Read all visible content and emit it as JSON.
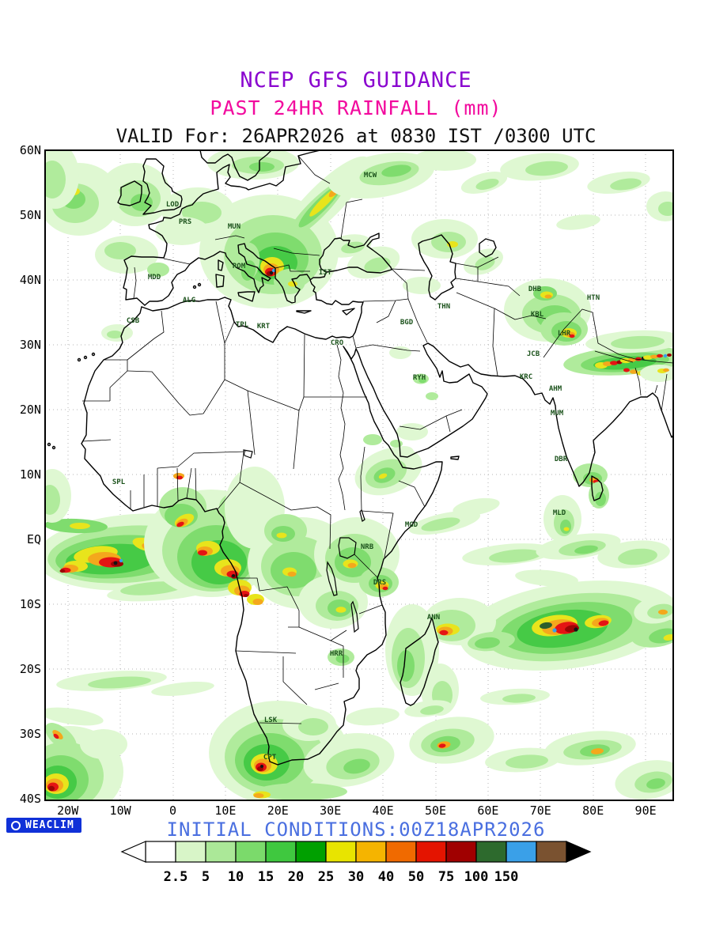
{
  "header": {
    "title": "NCEP GFS GUIDANCE",
    "subtitle": "PAST 24HR RAINFALL (mm)",
    "valid_line": "VALID For: 26APR2026 at 0830 IST /0300 UTC",
    "title_color": "#8a06cf",
    "subtitle_color": "#f20a9e"
  },
  "footer": {
    "initial_conditions": "INITIAL CONDITIONS:00Z18APR2026",
    "color": "#4a6fe0"
  },
  "branding": {
    "watermark": "WEACLIM",
    "bg": "#1031d8"
  },
  "chart_data": {
    "type": "heatmap",
    "projection": "latlon",
    "lon_range": [
      -24,
      95.5
    ],
    "lat_range": [
      -40,
      60
    ],
    "grid": {
      "lon_step": 10,
      "lat_step": 10,
      "style": "dotted"
    },
    "x_ticks": [
      {
        "label": "20W",
        "lon": -20
      },
      {
        "label": "10W",
        "lon": -10
      },
      {
        "label": "0",
        "lon": 0
      },
      {
        "label": "10E",
        "lon": 10
      },
      {
        "label": "20E",
        "lon": 20
      },
      {
        "label": "30E",
        "lon": 30
      },
      {
        "label": "40E",
        "lon": 40
      },
      {
        "label": "50E",
        "lon": 50
      },
      {
        "label": "60E",
        "lon": 60
      },
      {
        "label": "70E",
        "lon": 70
      },
      {
        "label": "80E",
        "lon": 80
      },
      {
        "label": "90E",
        "lon": 90
      }
    ],
    "y_ticks": [
      {
        "label": "60N",
        "lat": 60
      },
      {
        "label": "50N",
        "lat": 50
      },
      {
        "label": "40N",
        "lat": 40
      },
      {
        "label": "30N",
        "lat": 30
      },
      {
        "label": "20N",
        "lat": 20
      },
      {
        "label": "10N",
        "lat": 10
      },
      {
        "label": "EQ",
        "lat": 0
      },
      {
        "label": "10S",
        "lat": -10
      },
      {
        "label": "20S",
        "lat": -20
      },
      {
        "label": "30S",
        "lat": -30
      },
      {
        "label": "40S",
        "lat": -40
      }
    ],
    "colorbar": {
      "units": "mm",
      "values": [
        "2.5",
        "5",
        "10",
        "15",
        "20",
        "25",
        "30",
        "40",
        "50",
        "75",
        "100",
        "150"
      ],
      "colors": [
        "#ffffff",
        "#d8f5c8",
        "#abe898",
        "#7bda6b",
        "#3fc83f",
        "#00a000",
        "#e8e400",
        "#f5b400",
        "#f06a00",
        "#e41400",
        "#a00000",
        "#2d6a2d",
        "#3aa0e8",
        "#7a5230"
      ],
      "arrow_left_color": "#ffffff",
      "arrow_right_color": "#000000"
    },
    "stations": [
      {
        "label": "MCW",
        "x": 468,
        "y": 222
      },
      {
        "label": "LOD",
        "x": 218,
        "y": 259
      },
      {
        "label": "PRS",
        "x": 234,
        "y": 281
      },
      {
        "label": "MUN",
        "x": 296,
        "y": 287
      },
      {
        "label": "ROM",
        "x": 302,
        "y": 337
      },
      {
        "label": "IST",
        "x": 411,
        "y": 345
      },
      {
        "label": "MDD",
        "x": 195,
        "y": 351
      },
      {
        "label": "ALG",
        "x": 239,
        "y": 380
      },
      {
        "label": "CSB",
        "x": 168,
        "y": 406
      },
      {
        "label": "TPL",
        "x": 306,
        "y": 411
      },
      {
        "label": "KRT",
        "x": 333,
        "y": 413
      },
      {
        "label": "CRO",
        "x": 426,
        "y": 434
      },
      {
        "label": "BGD",
        "x": 514,
        "y": 408
      },
      {
        "label": "THN",
        "x": 561,
        "y": 388
      },
      {
        "label": "DHB",
        "x": 676,
        "y": 366
      },
      {
        "label": "HTN",
        "x": 750,
        "y": 377
      },
      {
        "label": "KBL",
        "x": 679,
        "y": 398
      },
      {
        "label": "LHR",
        "x": 713,
        "y": 422
      },
      {
        "label": "JCB",
        "x": 674,
        "y": 448
      },
      {
        "label": "KRC",
        "x": 665,
        "y": 477
      },
      {
        "label": "AHM",
        "x": 702,
        "y": 492
      },
      {
        "label": "MUM",
        "x": 704,
        "y": 523
      },
      {
        "label": "RYH",
        "x": 530,
        "y": 478
      },
      {
        "label": "DBR",
        "x": 709,
        "y": 581
      },
      {
        "label": "MLD",
        "x": 707,
        "y": 649
      },
      {
        "label": "SPL",
        "x": 150,
        "y": 610
      },
      {
        "label": "MGD",
        "x": 520,
        "y": 664
      },
      {
        "label": "NRB",
        "x": 464,
        "y": 692
      },
      {
        "label": "DRS",
        "x": 480,
        "y": 737
      },
      {
        "label": "ANN",
        "x": 548,
        "y": 781
      },
      {
        "label": "HRR",
        "x": 425,
        "y": 827
      },
      {
        "label": "LSK",
        "x": 342,
        "y": 911
      },
      {
        "label": "CPT",
        "x": 341,
        "y": 958
      }
    ],
    "rain_regions": [
      {
        "area": "Equatorial Atlantic ITCZ",
        "max_mm": ">150"
      },
      {
        "area": "Gulf of Guinea / West African coast",
        "max_mm": ">100"
      },
      {
        "area": "Congo Basin",
        "max_mm": "40"
      },
      {
        "area": "East Africa / Lake Victoria / Tanzania coast",
        "max_mm": "50"
      },
      {
        "area": "Italy / Balkans / Greece",
        "max_mm": ">100"
      },
      {
        "area": "NW Europe / UK / NE Atlantic",
        "max_mm": "30"
      },
      {
        "area": "Ukraine diagonal band toward Moscow",
        "max_mm": "40"
      },
      {
        "area": "Afghanistan / Pakistan / NW India",
        "max_mm": "50"
      },
      {
        "area": "Himalayan arc",
        "max_mm": ">100"
      },
      {
        "area": "SW Indian Ocean storm band",
        "max_mm": ">150"
      },
      {
        "area": "Cape Town / South Atlantic low",
        "max_mm": "75"
      },
      {
        "area": "Southern Ocean storm track",
        "max_mm": "40"
      },
      {
        "area": "Madagascar / Mozambique Channel",
        "max_mm": "25"
      }
    ]
  }
}
